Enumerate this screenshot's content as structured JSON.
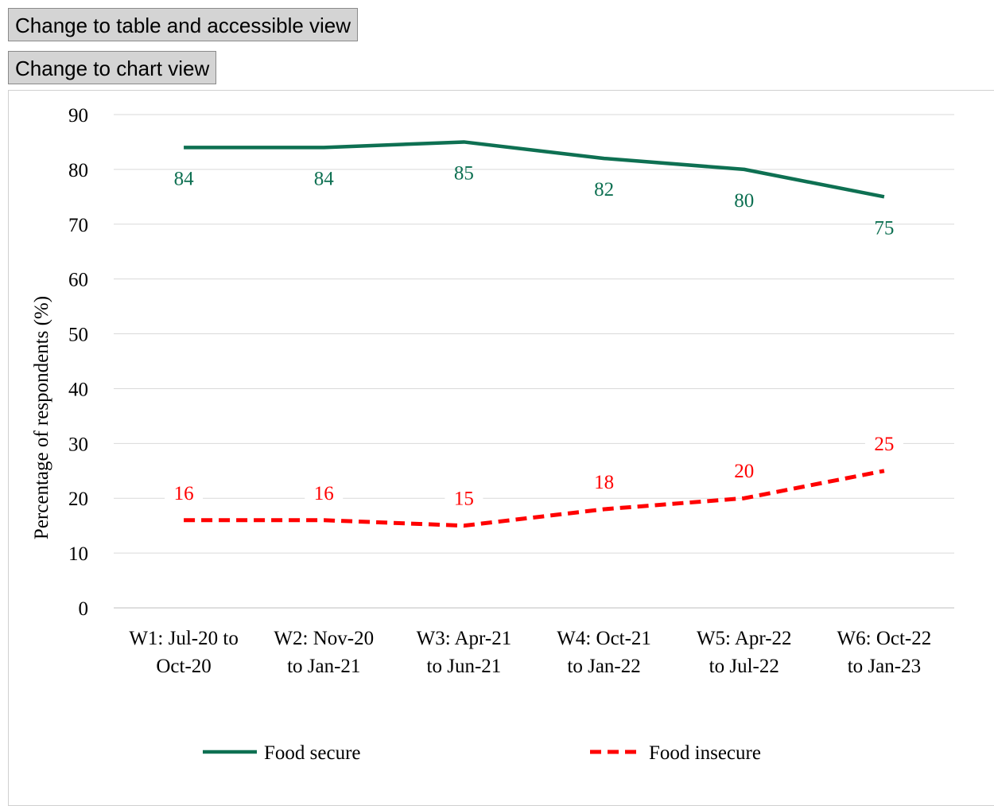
{
  "buttons": {
    "table_view": "Change to table and accessible view",
    "chart_view": "Change to chart view"
  },
  "chart_data": {
    "type": "line",
    "categories": [
      [
        "W1: Jul-20 to",
        "Oct-20"
      ],
      [
        "W2: Nov-20",
        "to Jan-21"
      ],
      [
        "W3: Apr-21",
        "to Jun-21"
      ],
      [
        "W4: Oct-21",
        "to Jan-22"
      ],
      [
        "W5: Apr-22",
        "to Jul-22"
      ],
      [
        "W6: Oct-22",
        "to Jan-23"
      ]
    ],
    "series": [
      {
        "name": "Food secure",
        "values": [
          84,
          84,
          85,
          82,
          80,
          75
        ],
        "color": "#0e7052",
        "dash": "solid"
      },
      {
        "name": "Food insecure",
        "values": [
          16,
          16,
          15,
          18,
          20,
          25
        ],
        "color": "#ff0000",
        "dash": "dashed"
      }
    ],
    "title": "",
    "xlabel": "",
    "ylabel": "Percentage of respondents (%)",
    "ylim": [
      0,
      90
    ],
    "yticks": [
      0,
      10,
      20,
      30,
      40,
      50,
      60,
      70,
      80,
      90
    ],
    "grid": true,
    "data_labels": true,
    "legend": "bottom"
  }
}
